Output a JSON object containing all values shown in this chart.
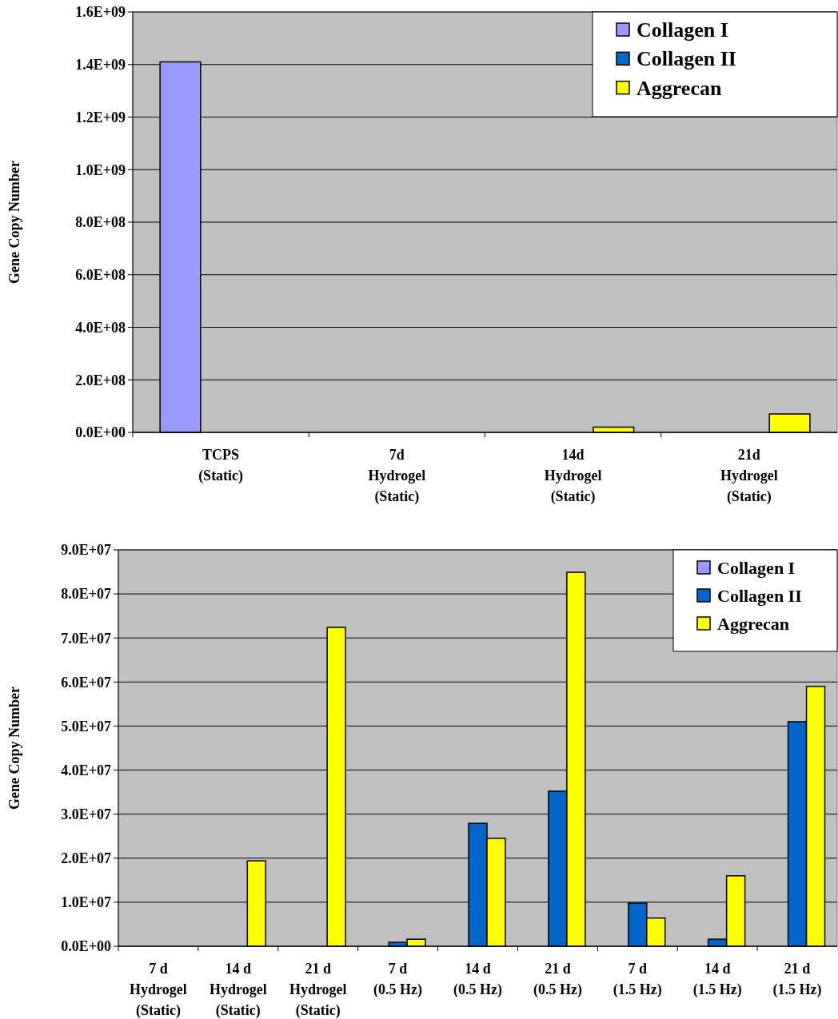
{
  "chart_data": [
    {
      "type": "bar",
      "ylabel": "Gene Copy Number",
      "categories": [
        "TCPS\n(Static)",
        "7d\nHydrogel\n(Static)",
        "14d\nHydrogel\n(Static)",
        "21d\nHydrogel\n(Static)"
      ],
      "series": [
        {
          "name": "Collagen I",
          "color": "#9999ff",
          "values": [
            1410000000,
            0,
            0,
            0
          ]
        },
        {
          "name": "Collagen II",
          "color": "#0066cc",
          "values": [
            0,
            0,
            0,
            0
          ]
        },
        {
          "name": "Aggrecan",
          "color": "#ffff00",
          "values": [
            0,
            0,
            20000000,
            70000000
          ]
        }
      ],
      "ylim": [
        0,
        1600000000
      ],
      "yticks": [
        {
          "value": 0,
          "label": "0.0E+00"
        },
        {
          "value": 200000000,
          "label": "2.0E+08"
        },
        {
          "value": 400000000,
          "label": "4.0E+08"
        },
        {
          "value": 600000000,
          "label": "6.0E+08"
        },
        {
          "value": 800000000,
          "label": "8.0E+08"
        },
        {
          "value": 1000000000,
          "label": "1.0E+09"
        },
        {
          "value": 1200000000,
          "label": "1.2E+09"
        },
        {
          "value": 1400000000,
          "label": "1.4E+09"
        },
        {
          "value": 1600000000,
          "label": "1.6E+09"
        }
      ],
      "grid": "y",
      "legend": "top right"
    },
    {
      "type": "bar",
      "ylabel": "Gene Copy Number",
      "categories": [
        "7 d\nHydrogel\n(Static)",
        "14 d\nHydrogel\n(Static)",
        "21 d\nHydrogel\n(Static)",
        "7 d\n(0.5 Hz)",
        "14 d\n(0.5 Hz)",
        "21 d\n(0.5 Hz)",
        "7 d\n(1.5 Hz)",
        "14 d\n(1.5 Hz)",
        "21 d\n(1.5 Hz)"
      ],
      "series": [
        {
          "name": "Collagen I",
          "color": "#9999ff",
          "values": [
            0,
            0,
            0,
            0,
            0,
            0,
            0,
            0,
            0
          ]
        },
        {
          "name": "Collagen II",
          "color": "#0066cc",
          "values": [
            0,
            0,
            0,
            900000,
            27900000,
            35200000,
            9800000,
            1600000,
            51000000
          ]
        },
        {
          "name": "Aggrecan",
          "color": "#ffff00",
          "values": [
            0,
            19400000,
            72400000,
            1600000,
            24500000,
            84900000,
            6400000,
            16000000,
            59000000
          ]
        }
      ],
      "ylim": [
        0,
        90000000
      ],
      "yticks": [
        {
          "value": 0,
          "label": "0.0E+00"
        },
        {
          "value": 10000000,
          "label": "1.0E+07"
        },
        {
          "value": 20000000,
          "label": "2.0E+07"
        },
        {
          "value": 30000000,
          "label": "3.0E+07"
        },
        {
          "value": 40000000,
          "label": "4.0E+07"
        },
        {
          "value": 50000000,
          "label": "5.0E+07"
        },
        {
          "value": 60000000,
          "label": "6.0E+07"
        },
        {
          "value": 70000000,
          "label": "7.0E+07"
        },
        {
          "value": 80000000,
          "label": "8.0E+07"
        },
        {
          "value": 90000000,
          "label": "9.0E+07"
        }
      ],
      "grid": "y",
      "legend": "top right"
    }
  ]
}
